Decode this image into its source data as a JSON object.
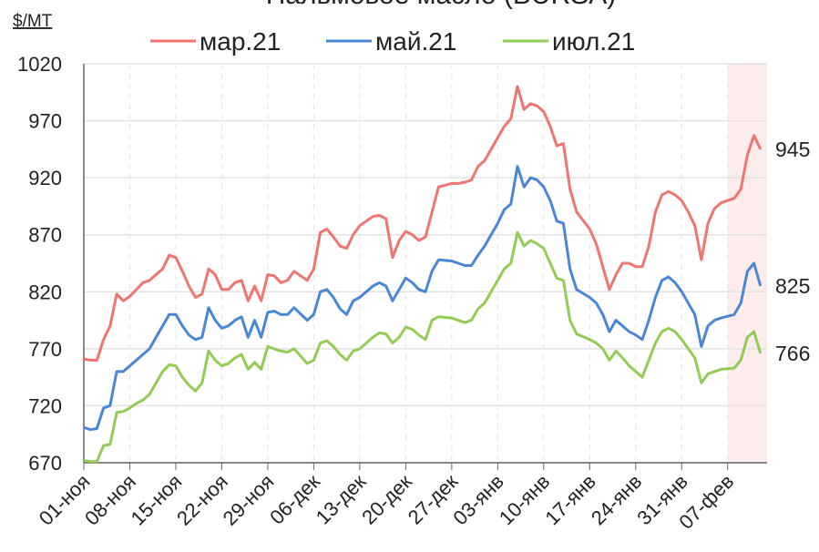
{
  "chart_data": {
    "type": "line",
    "title": "Пальмовое масло (BURSA)",
    "y_label": "$/MT",
    "x": [
      0,
      1,
      2,
      3,
      4,
      5,
      6,
      7,
      8,
      9,
      10,
      12,
      13,
      14,
      15,
      16,
      17,
      18,
      19,
      20,
      21,
      22,
      23,
      24,
      25,
      26,
      27,
      28,
      29,
      30,
      31,
      32,
      34,
      35,
      36,
      37,
      38,
      39,
      40,
      41,
      42,
      43,
      44,
      45,
      46,
      47,
      48,
      49,
      50,
      51,
      52,
      53,
      54,
      56,
      57,
      58,
      59,
      60,
      61,
      62,
      63,
      64,
      65,
      66,
      67,
      68,
      69,
      70,
      71,
      72,
      73,
      74,
      75,
      77,
      78,
      79,
      80,
      81,
      82,
      83,
      84,
      85,
      86,
      87,
      88,
      89,
      90,
      91,
      92,
      93,
      94,
      95,
      96,
      97,
      99,
      100,
      101,
      102,
      103
    ],
    "series": [
      {
        "name": "мар.21",
        "color": "#f07470",
        "values": [
          761,
          760,
          760,
          778,
          790,
          818,
          812,
          816,
          822,
          828,
          830,
          840,
          852,
          850,
          838,
          825,
          815,
          818,
          840,
          835,
          822,
          822,
          828,
          830,
          812,
          825,
          812,
          835,
          834,
          828,
          830,
          838,
          830,
          840,
          872,
          875,
          868,
          860,
          858,
          870,
          878,
          882,
          886,
          887,
          884,
          850,
          865,
          873,
          870,
          865,
          868,
          890,
          912,
          915,
          915,
          916,
          918,
          930,
          935,
          945,
          955,
          965,
          972,
          1000,
          980,
          985,
          983,
          978,
          965,
          948,
          950,
          910,
          890,
          875,
          862,
          842,
          822,
          835,
          845,
          845,
          842,
          842,
          860,
          890,
          905,
          908,
          905,
          900,
          890,
          878,
          848,
          880,
          893,
          898,
          902,
          910,
          940,
          957,
          945
        ]
      },
      {
        "name": "май.21",
        "color": "#4a86d8",
        "values": [
          701,
          699,
          700,
          718,
          720,
          750,
          750,
          755,
          760,
          765,
          770,
          790,
          800,
          800,
          790,
          782,
          778,
          780,
          806,
          795,
          788,
          790,
          795,
          798,
          780,
          795,
          780,
          802,
          803,
          800,
          800,
          806,
          795,
          800,
          820,
          822,
          815,
          805,
          800,
          812,
          815,
          820,
          825,
          828,
          825,
          812,
          822,
          832,
          828,
          822,
          820,
          838,
          848,
          847,
          845,
          843,
          843,
          852,
          860,
          870,
          880,
          892,
          897,
          930,
          912,
          920,
          918,
          912,
          900,
          882,
          880,
          840,
          822,
          815,
          810,
          800,
          785,
          795,
          790,
          785,
          782,
          778,
          795,
          815,
          830,
          833,
          828,
          820,
          810,
          800,
          772,
          790,
          795,
          797,
          800,
          810,
          838,
          845,
          825
        ]
      },
      {
        "name": "июл.21",
        "color": "#92cc55",
        "values": [
          672,
          671,
          671,
          685,
          686,
          714,
          715,
          718,
          722,
          725,
          730,
          750,
          756,
          755,
          745,
          738,
          733,
          740,
          768,
          760,
          755,
          757,
          762,
          765,
          752,
          758,
          752,
          772,
          770,
          768,
          767,
          770,
          757,
          760,
          775,
          777,
          772,
          765,
          760,
          768,
          770,
          775,
          780,
          784,
          783,
          775,
          780,
          789,
          787,
          782,
          778,
          795,
          798,
          797,
          795,
          793,
          795,
          805,
          810,
          820,
          830,
          840,
          845,
          872,
          860,
          865,
          862,
          858,
          845,
          832,
          830,
          795,
          783,
          778,
          775,
          770,
          760,
          768,
          762,
          755,
          750,
          745,
          760,
          775,
          785,
          788,
          785,
          778,
          770,
          762,
          740,
          748,
          750,
          752,
          753,
          760,
          780,
          785,
          766
        ]
      }
    ],
    "xlim": [
      0,
      104
    ],
    "xticks": [
      {
        "value": 0,
        "label": "01-ноя"
      },
      {
        "value": 7,
        "label": "08-ноя"
      },
      {
        "value": 14,
        "label": "15-ноя"
      },
      {
        "value": 21,
        "label": "22-ноя"
      },
      {
        "value": 28,
        "label": "29-ноя"
      },
      {
        "value": 35,
        "label": "06-дек"
      },
      {
        "value": 42,
        "label": "13-дек"
      },
      {
        "value": 49,
        "label": "20-дек"
      },
      {
        "value": 56,
        "label": "27-дек"
      },
      {
        "value": 63,
        "label": "03-янв"
      },
      {
        "value": 70,
        "label": "10-янв"
      },
      {
        "value": 77,
        "label": "17-янв"
      },
      {
        "value": 84,
        "label": "24-янв"
      },
      {
        "value": 91,
        "label": "31-янв"
      },
      {
        "value": 98,
        "label": "07-фев"
      }
    ],
    "ylim": [
      670,
      1020
    ],
    "yticks": [
      670,
      720,
      770,
      820,
      870,
      920,
      970,
      1020
    ],
    "highlight_range": [
      98,
      104
    ],
    "grid": true
  }
}
